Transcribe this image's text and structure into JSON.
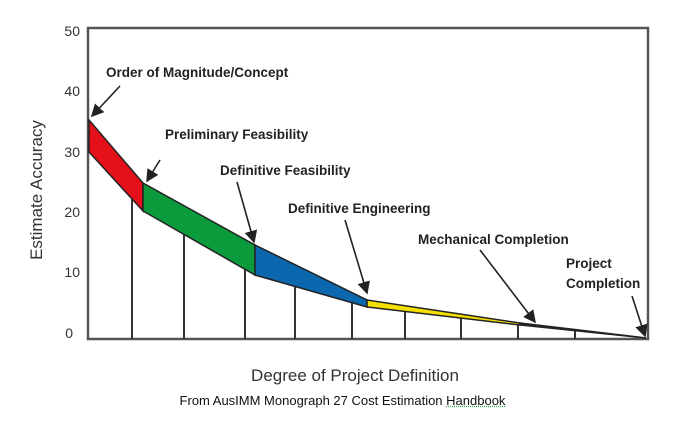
{
  "y_axis": {
    "title": "Estimate Accuracy",
    "ticks": [
      "0",
      "10",
      "20",
      "30",
      "40",
      "50"
    ]
  },
  "x_axis": {
    "title": "Degree of Project Definition"
  },
  "stages": [
    {
      "label": "Order of Magnitude/Concept",
      "color": "#e4111b"
    },
    {
      "label": "Preliminary Feasibility",
      "color": "#0b9a3c"
    },
    {
      "label": "Definitive Feasibility",
      "color": "#0b68ae"
    },
    {
      "label": "Definitive Engineering",
      "color": "#f3e000"
    },
    {
      "label": "Mechanical Completion",
      "color": "#222222"
    },
    {
      "label_line1": "Project",
      "label_line2": "Completion"
    }
  ],
  "caption": {
    "prefix": "From AusIMM Monograph 27 Cost Estimation ",
    "link": "Handbook"
  }
}
